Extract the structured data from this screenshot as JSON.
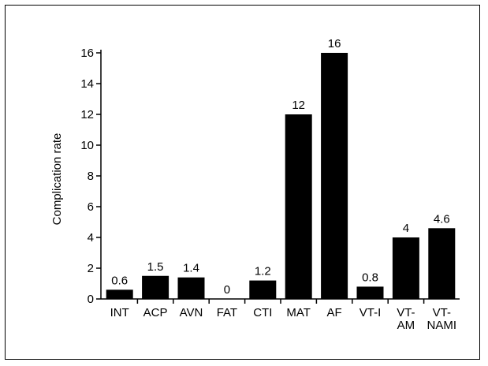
{
  "chart_data": {
    "type": "bar",
    "title": "",
    "xlabel": "",
    "ylabel": "Complication rate",
    "ylim": [
      0,
      16
    ],
    "yticks": [
      0,
      2,
      4,
      6,
      8,
      10,
      12,
      14,
      16
    ],
    "grid": false,
    "legend": "none",
    "bar_color": "#000000",
    "categories": [
      [
        "INT"
      ],
      [
        "ACP"
      ],
      [
        "AVN"
      ],
      [
        "FAT"
      ],
      [
        "CTI"
      ],
      [
        "MAT"
      ],
      [
        "AF"
      ],
      [
        "VT-I"
      ],
      [
        "VT-",
        "AM"
      ],
      [
        "VT-",
        "NAMI"
      ]
    ],
    "values": [
      0.6,
      1.5,
      1.4,
      0,
      1.2,
      12,
      16,
      0.8,
      4,
      4.6
    ],
    "value_labels": [
      "0.6",
      "1.5",
      "1.4",
      "0",
      "1.2",
      "12",
      "16",
      "0.8",
      "4",
      "4.6"
    ]
  }
}
